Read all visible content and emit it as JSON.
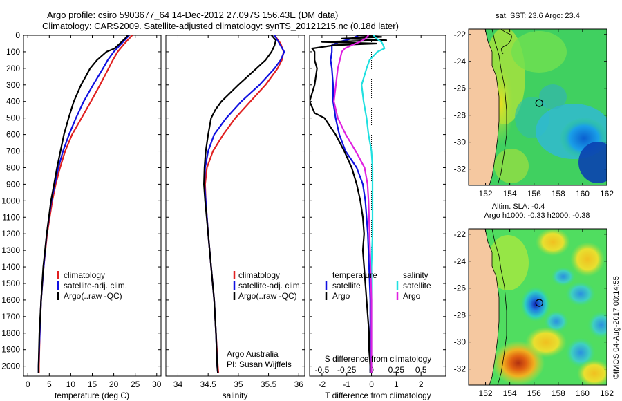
{
  "header": {
    "line1": "Argo profile: csiro 5903677_64 14-Dec-2012 27.097S 156.43E (DM data)",
    "line2": "Climatology: CARS2009. Satellite-adjusted climatology: synTS_20121215.nc (0.18d later)"
  },
  "colors": {
    "climatology": "#e02020",
    "satellite_adj": "#1010e0",
    "argo": "#000000",
    "satellite": "#20e0e0",
    "argo_salinity": "#e020e0",
    "land": "#f5c8a0"
  },
  "depth_axis": {
    "ylim": [
      0,
      2060
    ],
    "ticks": [
      0,
      100,
      200,
      300,
      400,
      500,
      600,
      700,
      800,
      900,
      1000,
      1100,
      1200,
      1300,
      1400,
      1500,
      1600,
      1700,
      1800,
      1900,
      2000
    ],
    "tick_labels": [
      "0",
      "100",
      "200",
      "300",
      "400",
      "500",
      "600",
      "700",
      "800",
      "900",
      "1000",
      "1100",
      "1200",
      "1300",
      "1400",
      "1500",
      "1600",
      "1700",
      "1800",
      "1900",
      "2000"
    ]
  },
  "chart_data": [
    {
      "type": "line",
      "id": "temperature",
      "xlabel": "temperature (deg C)",
      "xlim": [
        -1,
        31
      ],
      "xticks": [
        0,
        5,
        10,
        15,
        20,
        25,
        30
      ],
      "xtick_labels": [
        "0",
        "5",
        "10",
        "15",
        "20",
        "25",
        "30"
      ],
      "legend": [
        "climatology",
        "satellite-adj. clim.",
        "Argo(..raw -QC)"
      ],
      "legend_position": "lower-center",
      "series": [
        {
          "name": "climatology",
          "color_key": "climatology",
          "depth": [
            0,
            50,
            100,
            150,
            200,
            300,
            400,
            500,
            600,
            700,
            800,
            900,
            1000,
            1200,
            1400,
            1600,
            1800,
            2000,
            2040
          ],
          "values": [
            24.3,
            22.5,
            20.9,
            19.8,
            18.8,
            16.8,
            14.7,
            12.5,
            10.3,
            8.7,
            7.5,
            6.5,
            5.7,
            4.5,
            3.7,
            3.1,
            2.8,
            2.6,
            2.6
          ]
        },
        {
          "name": "satellite-adj. clim.",
          "color_key": "satellite_adj",
          "depth": [
            0,
            50,
            100,
            150,
            200,
            300,
            400,
            500,
            600,
            700,
            800,
            900,
            1000,
            1200,
            1400,
            1600,
            1800,
            2000,
            2040
          ],
          "values": [
            23.6,
            21.8,
            20.0,
            18.6,
            17.5,
            15.2,
            13.0,
            11.2,
            9.6,
            8.2,
            7.1,
            6.3,
            5.5,
            4.4,
            3.7,
            3.1,
            2.8,
            2.5,
            2.5
          ]
        },
        {
          "name": "Argo(..raw -QC)",
          "color_key": "argo",
          "depth": [
            0,
            20,
            50,
            80,
            100,
            150,
            200,
            300,
            400,
            500,
            600,
            700,
            800,
            900,
            1000,
            1200,
            1400,
            1600,
            1800,
            2000,
            2040
          ],
          "values": [
            23.3,
            22.6,
            21.4,
            20.2,
            18.3,
            16.1,
            14.5,
            12.4,
            10.7,
            9.5,
            8.4,
            7.6,
            6.8,
            6.1,
            5.4,
            4.4,
            3.6,
            3.1,
            2.7,
            2.5,
            2.5
          ]
        }
      ]
    },
    {
      "type": "line",
      "id": "salinity",
      "xlabel": "salinity",
      "xlim": [
        33.8,
        36.1
      ],
      "xticks": [
        34,
        34.5,
        35,
        35.5,
        36
      ],
      "xtick_labels": [
        "34",
        "34.5",
        "35",
        "35.5",
        "36"
      ],
      "legend": [
        "climatology",
        "satellite-adj. clim.",
        "Argo(..raw -QC)"
      ],
      "legend_position": "lower-center",
      "annotation": [
        "Argo Australia",
        "PI: Susan Wijffels"
      ],
      "series": [
        {
          "name": "climatology",
          "color_key": "climatology",
          "depth": [
            0,
            50,
            100,
            150,
            200,
            300,
            400,
            500,
            600,
            700,
            800,
            900,
            1000,
            1200,
            1400,
            1600,
            1800,
            2000,
            2040
          ],
          "values": [
            35.6,
            35.7,
            35.75,
            35.72,
            35.65,
            35.45,
            35.2,
            34.95,
            34.75,
            34.58,
            34.48,
            34.45,
            34.46,
            34.5,
            34.55,
            34.6,
            34.63,
            34.66,
            34.67
          ]
        },
        {
          "name": "satellite-adj. clim.",
          "color_key": "satellite_adj",
          "depth": [
            0,
            50,
            100,
            150,
            200,
            300,
            400,
            500,
            600,
            700,
            800,
            900,
            1000,
            1200,
            1400,
            1600,
            1800,
            2000,
            2040
          ],
          "values": [
            35.6,
            35.68,
            35.76,
            35.7,
            35.6,
            35.35,
            35.05,
            34.8,
            34.6,
            34.5,
            34.45,
            34.44,
            34.46,
            34.5,
            34.55,
            34.6,
            34.63,
            34.65,
            34.66
          ]
        },
        {
          "name": "Argo(..raw -QC)",
          "color_key": "argo",
          "depth": [
            0,
            30,
            60,
            100,
            150,
            200,
            300,
            400,
            450,
            500,
            600,
            700,
            800,
            900,
            1000,
            1200,
            1400,
            1600,
            1800,
            2000,
            2040
          ],
          "values": [
            35.55,
            35.62,
            35.6,
            35.55,
            35.45,
            35.3,
            35.0,
            34.72,
            34.62,
            34.55,
            34.5,
            34.46,
            34.44,
            34.43,
            34.45,
            34.5,
            34.55,
            34.6,
            34.63,
            34.65,
            34.66
          ]
        }
      ]
    },
    {
      "type": "line",
      "id": "differences",
      "xlabel": "T difference from climatology",
      "xlabel_top": "S difference from climatology",
      "xlim": [
        -2.5,
        3.0
      ],
      "xticks": [
        -2,
        -1,
        0,
        1,
        2
      ],
      "xtick_labels": [
        "-2",
        "-1",
        "0",
        "1",
        "2"
      ],
      "s_ticks": [
        -0.5,
        -0.25,
        0,
        0.25,
        0.5
      ],
      "s_tick_labels": [
        "-0.5",
        "-0.25",
        "0",
        "0.25",
        "0.5"
      ],
      "s_scale": 0.25,
      "zero_line": "dotted",
      "legend_titles": [
        "temperature",
        "salinity"
      ],
      "legend_t": [
        "satellite",
        "Argo"
      ],
      "legend_s": [
        "satellite",
        "Argo"
      ],
      "series": [
        {
          "name": "T satellite",
          "color_key": "satellite_adj",
          "kind": "T",
          "depth": [
            0,
            20,
            40,
            60,
            100,
            150,
            200,
            300,
            400,
            500,
            600,
            700,
            800,
            900,
            1000,
            1200,
            1400,
            1600,
            1800,
            2000,
            2040
          ],
          "values": [
            -0.5,
            -0.8,
            -1.3,
            -1.6,
            -1.6,
            -1.65,
            -1.6,
            -1.55,
            -1.55,
            -1.45,
            -1.3,
            -1.05,
            -0.6,
            -0.35,
            -0.25,
            -0.15,
            -0.1,
            -0.05,
            -0.05,
            -0.05,
            -0.05
          ]
        },
        {
          "name": "T Argo",
          "color_key": "argo",
          "kind": "T",
          "depth": [
            0,
            10,
            20,
            30,
            40,
            50,
            60,
            80,
            100,
            150,
            200,
            300,
            400,
            470,
            500,
            600,
            700,
            800,
            900,
            1000,
            1100,
            1200,
            1300,
            1400,
            1500,
            1600,
            1700,
            1800,
            1900,
            2000,
            2040
          ],
          "values": [
            -0.6,
            0.4,
            -1.2,
            0.6,
            -2.0,
            0.2,
            -1.5,
            -2.4,
            -2.3,
            -2.3,
            -2.2,
            -2.3,
            -2.5,
            -2.3,
            -1.9,
            -1.45,
            -1.1,
            -0.8,
            -0.6,
            -0.45,
            -0.35,
            -0.3,
            -0.35,
            -0.3,
            -0.25,
            -0.2,
            -0.15,
            -0.1,
            -0.1,
            -0.05,
            -0.05
          ]
        },
        {
          "name": "S satellite",
          "color_key": "satellite",
          "kind": "S",
          "depth": [
            0,
            20,
            40,
            60,
            80,
            100,
            150,
            200,
            300,
            400,
            500,
            600,
            700,
            800,
            900,
            1000,
            1200,
            1400,
            1600,
            1800,
            2000,
            2040
          ],
          "values": [
            0.02,
            0.05,
            0.1,
            0.12,
            0.13,
            0.06,
            -0.02,
            -0.05,
            -0.1,
            -0.08,
            -0.05,
            -0.03,
            0.0,
            0.01,
            0.01,
            0.01,
            0.01,
            0.0,
            0.0,
            0.0,
            0.0,
            0.0
          ]
        },
        {
          "name": "S Argo",
          "color_key": "argo_salinity",
          "kind": "S",
          "depth": [
            0,
            20,
            40,
            60,
            80,
            100,
            150,
            200,
            300,
            400,
            500,
            600,
            700,
            800,
            900,
            1000,
            1200,
            1400,
            1600,
            1800,
            2000,
            2040
          ],
          "values": [
            -0.03,
            -0.06,
            -0.12,
            -0.2,
            -0.27,
            -0.3,
            -0.32,
            -0.34,
            -0.36,
            -0.38,
            -0.34,
            -0.26,
            -0.16,
            -0.07,
            -0.04,
            -0.03,
            -0.02,
            -0.01,
            0.0,
            0.0,
            0.0,
            0.0
          ]
        }
      ]
    },
    {
      "type": "heatmap",
      "id": "sst_map",
      "title": "sat. SST: 23.6 Argo: 23.4",
      "xlim": [
        150.6,
        162.0
      ],
      "ylim": [
        -33.2,
        -21.6
      ],
      "xticks": [
        152,
        154,
        156,
        158,
        160,
        162
      ],
      "xtick_labels": [
        "152",
        "154",
        "156",
        "158",
        "160",
        "162"
      ],
      "yticks": [
        -22,
        -24,
        -26,
        -28,
        -30,
        -32
      ],
      "ytick_labels": [
        "-22",
        "-24",
        "-26",
        "-28",
        "-30",
        "-32"
      ],
      "profile_location": [
        156.43,
        -27.097
      ]
    },
    {
      "type": "heatmap",
      "id": "sla_map",
      "title": "Altim. SLA: -0.4",
      "subtitle": "Argo h1000: -0.33 h2000: -0.38",
      "xlim": [
        150.6,
        162.0
      ],
      "ylim": [
        -33.2,
        -21.6
      ],
      "xticks": [
        152,
        154,
        156,
        158,
        160,
        162
      ],
      "xtick_labels": [
        "152",
        "154",
        "156",
        "158",
        "160",
        "162"
      ],
      "yticks": [
        -22,
        -24,
        -26,
        -28,
        -30,
        -32
      ],
      "ytick_labels": [
        "-22",
        "-24",
        "-26",
        "-28",
        "-30",
        "-32"
      ],
      "profile_location": [
        156.43,
        -27.097
      ]
    }
  ],
  "side_stamp": "©IMOS 04-Aug-2017 00:14:55"
}
